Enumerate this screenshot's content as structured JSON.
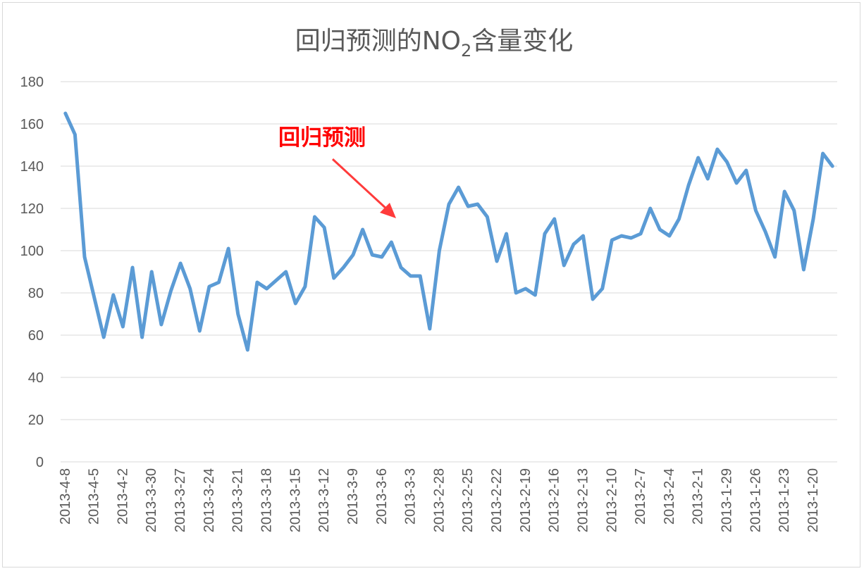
{
  "chart_data": {
    "type": "line",
    "title": {
      "prefix": "回归预测的NO",
      "subscript": "2",
      "suffix": "含量变化"
    },
    "ylim": [
      0,
      180
    ],
    "yticks": [
      "0",
      "20",
      "40",
      "60",
      "80",
      "100",
      "120",
      "140",
      "160",
      "180"
    ],
    "grid": true,
    "annotation": {
      "text": "回归预测",
      "arrow_color": "#ff3b3b"
    },
    "line_color": "#5b9bd5",
    "grid_color": "#d9d9d9",
    "text_color": "#595959",
    "xtick_labels": [
      "2013-4-8",
      "2013-4-5",
      "2013-4-2",
      "2013-3-30",
      "2013-3-27",
      "2013-3-24",
      "2013-3-21",
      "2013-3-18",
      "2013-3-15",
      "2013-3-12",
      "2013-3-9",
      "2013-3-6",
      "2013-3-3",
      "2013-2-28",
      "2013-2-25",
      "2013-2-22",
      "2013-2-19",
      "2013-2-16",
      "2013-2-13",
      "2013-2-10",
      "2013-2-7",
      "2013-2-4",
      "2013-2-1",
      "2013-1-29",
      "2013-1-26",
      "2013-1-23",
      "2013-1-20"
    ],
    "series": [
      {
        "values": [
          165,
          155,
          97,
          78,
          59,
          79,
          64,
          92,
          59,
          90,
          65,
          81,
          94,
          82,
          62,
          83,
          85,
          101,
          70,
          53,
          85,
          82,
          86,
          90,
          75,
          83,
          116,
          111,
          87,
          92,
          98,
          110,
          98,
          97,
          104,
          92,
          88,
          88,
          63,
          100,
          122,
          130,
          121,
          122,
          116,
          95,
          108,
          80,
          82,
          79,
          108,
          115,
          93,
          103,
          107,
          77,
          82,
          105,
          107,
          106,
          108,
          120,
          110,
          107,
          115,
          131,
          144,
          134,
          148,
          142,
          132,
          138,
          119,
          109,
          97,
          128,
          119,
          91,
          115,
          146,
          140
        ]
      }
    ]
  }
}
